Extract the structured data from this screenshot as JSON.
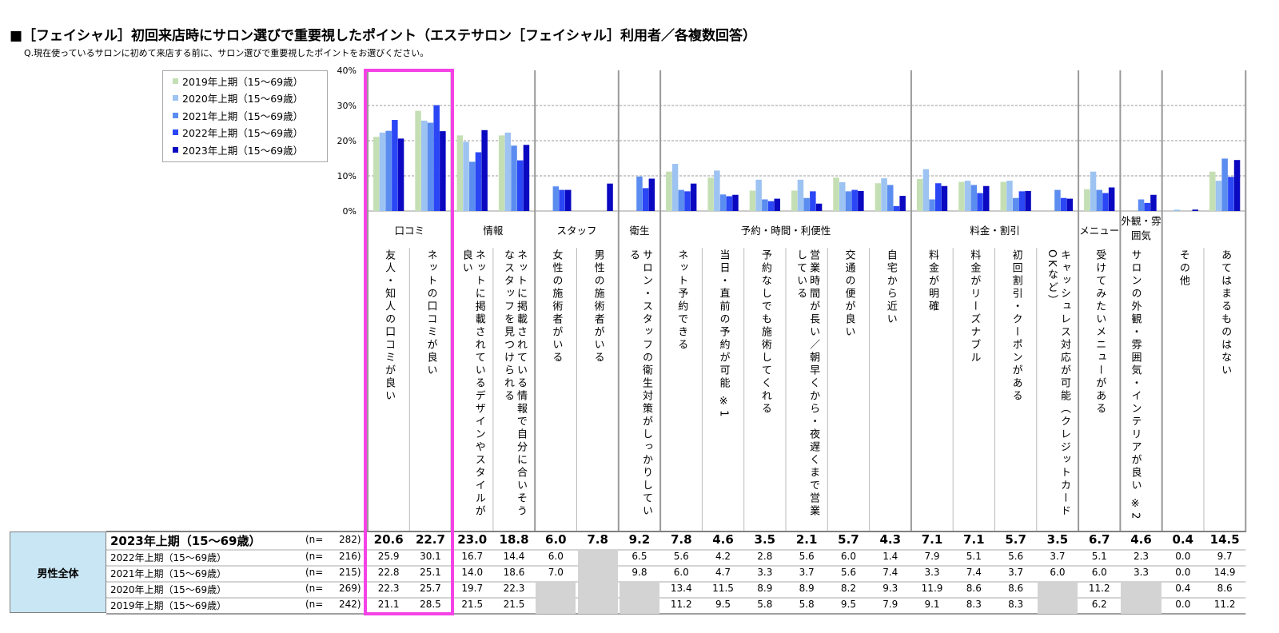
{
  "title": "■［フェイシャル］初回来店時にサロン選びで重要視したポイント（エステサロン［フェイシャル］利用者／各複数回答）",
  "question": "Q.現在使っているサロンに初めて来店する前に、サロン選びで重要視したポイントをお選びください。",
  "segment_label": "男性全体",
  "colors": {
    "2019": "#c5dfb4",
    "2020": "#9dc3f2",
    "2021": "#5b8df0",
    "2022": "#2a46f5",
    "2023": "#0a08c0",
    "highlight": "#f542e6"
  },
  "chart_data": {
    "type": "bar",
    "ylim": [
      0,
      40
    ],
    "yticks": [
      "0%",
      "10%",
      "20%",
      "30%",
      "40%"
    ],
    "series_order": [
      "2019年上期（15～69歳）",
      "2020年上期（15～69歳）",
      "2021年上期（15～69歳）",
      "2022年上期（15～69歳）",
      "2023年上期（15～69歳）"
    ],
    "groups": [
      {
        "label": "口コミ",
        "span": 2
      },
      {
        "label": "情報",
        "span": 2
      },
      {
        "label": "スタッフ",
        "span": 2
      },
      {
        "label": "衛生",
        "span": 1
      },
      {
        "label": "予約・時間・利便性",
        "span": 6
      },
      {
        "label": "料金・割引",
        "span": 4
      },
      {
        "label": "メニュー",
        "span": 1
      },
      {
        "label": "外観・雰囲気",
        "span": 1
      },
      {
        "label": "",
        "span": 2
      }
    ],
    "categories": [
      "友人・知人の口コミが良い",
      "ネットの口コミが良い",
      "ネットに掲載されているデザインやスタイルが良い",
      "ネットに掲載されている情報で自分に合いそうなスタッフを見つけられる",
      "女性の施術者がいる",
      "男性の施術者がいる",
      "サロン・スタッフの衛生対策がしっかりしている",
      "ネット予約できる",
      "当日・直前の予約が可能 ※1",
      "予約なしでも施術してくれる",
      "営業時間が長い／朝早くから・夜遅くまで営業している",
      "交通の便が良い",
      "自宅から近い",
      "料金が明確",
      "料金がリーズナブル",
      "初回割引・クーポンがある",
      "キャッシュレス対応が可能（クレジットカードOKなど）",
      "受けてみたいメニューがある",
      "サロンの外観・雰囲気・インテリアが良い ※2",
      "その他",
      "あてはまるものはない"
    ],
    "rows": [
      {
        "name": "2023年上期（15～69歳）",
        "n": "282",
        "values": [
          "20.6",
          "22.7",
          "23.0",
          "18.8",
          "6.0",
          "7.8",
          "9.2",
          "7.8",
          "4.6",
          "3.5",
          "2.1",
          "5.7",
          "4.3",
          "7.1",
          "7.1",
          "5.7",
          "3.5",
          "6.7",
          "4.6",
          "0.4",
          "14.5"
        ]
      },
      {
        "name": "2022年上期（15～69歳）",
        "n": "216",
        "values": [
          "25.9",
          "30.1",
          "16.7",
          "14.4",
          "6.0",
          null,
          "6.5",
          "5.6",
          "4.2",
          "2.8",
          "5.6",
          "6.0",
          "1.4",
          "7.9",
          "5.1",
          "5.6",
          "3.7",
          "5.1",
          "2.3",
          "0.0",
          "9.7"
        ]
      },
      {
        "name": "2021年上期（15～69歳）",
        "n": "215",
        "values": [
          "22.8",
          "25.1",
          "14.0",
          "18.6",
          "7.0",
          null,
          "9.8",
          "6.0",
          "4.7",
          "3.3",
          "3.7",
          "5.6",
          "7.4",
          "3.3",
          "7.4",
          "3.7",
          "6.0",
          "6.0",
          "3.3",
          "0.0",
          "14.9"
        ]
      },
      {
        "name": "2020年上期（15～69歳）",
        "n": "269",
        "values": [
          "22.3",
          "25.7",
          "19.7",
          "22.3",
          null,
          null,
          null,
          "13.4",
          "11.5",
          "8.9",
          "8.9",
          "8.2",
          "9.3",
          "11.9",
          "8.6",
          "8.6",
          null,
          "11.2",
          null,
          "0.4",
          "8.6"
        ]
      },
      {
        "name": "2019年上期（15～69歳）",
        "n": "242",
        "values": [
          "21.1",
          "28.5",
          "21.5",
          "21.5",
          null,
          null,
          null,
          "11.2",
          "9.5",
          "5.8",
          "5.8",
          "9.5",
          "7.9",
          "9.1",
          "8.3",
          "8.3",
          null,
          "6.2",
          null,
          "0.0",
          "11.2"
        ]
      }
    ],
    "n_prefix": "(n=",
    "n_suffix": ")"
  }
}
